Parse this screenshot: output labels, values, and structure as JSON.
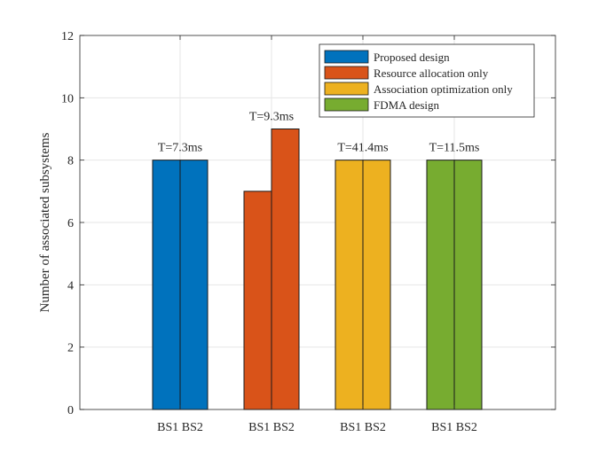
{
  "chart_data": {
    "type": "bar",
    "title": "",
    "xlabel": "",
    "ylabel": "Number of associated subsystems",
    "ylim": [
      0,
      12
    ],
    "yticks": [
      0,
      2,
      4,
      6,
      8,
      10,
      12
    ],
    "grid": true,
    "legend_position": "top-right",
    "groups": [
      {
        "name": "Proposed design",
        "color": "#0072BD",
        "annotation": "T=7.3ms",
        "bars": [
          {
            "label": "BS1",
            "value": 8
          },
          {
            "label": "BS2",
            "value": 8
          }
        ]
      },
      {
        "name": "Resource allocation only",
        "color": "#D95319",
        "annotation": "T=9.3ms",
        "bars": [
          {
            "label": "BS1",
            "value": 7
          },
          {
            "label": "BS2",
            "value": 9
          }
        ]
      },
      {
        "name": "Association optimization only",
        "color": "#EDB120",
        "annotation": "T=41.4ms",
        "bars": [
          {
            "label": "BS1",
            "value": 8
          },
          {
            "label": "BS2",
            "value": 8
          }
        ]
      },
      {
        "name": "FDMA design",
        "color": "#77AC30",
        "annotation": "T=11.5ms",
        "bars": [
          {
            "label": "BS1",
            "value": 8
          },
          {
            "label": "BS2",
            "value": 8
          }
        ]
      }
    ]
  }
}
